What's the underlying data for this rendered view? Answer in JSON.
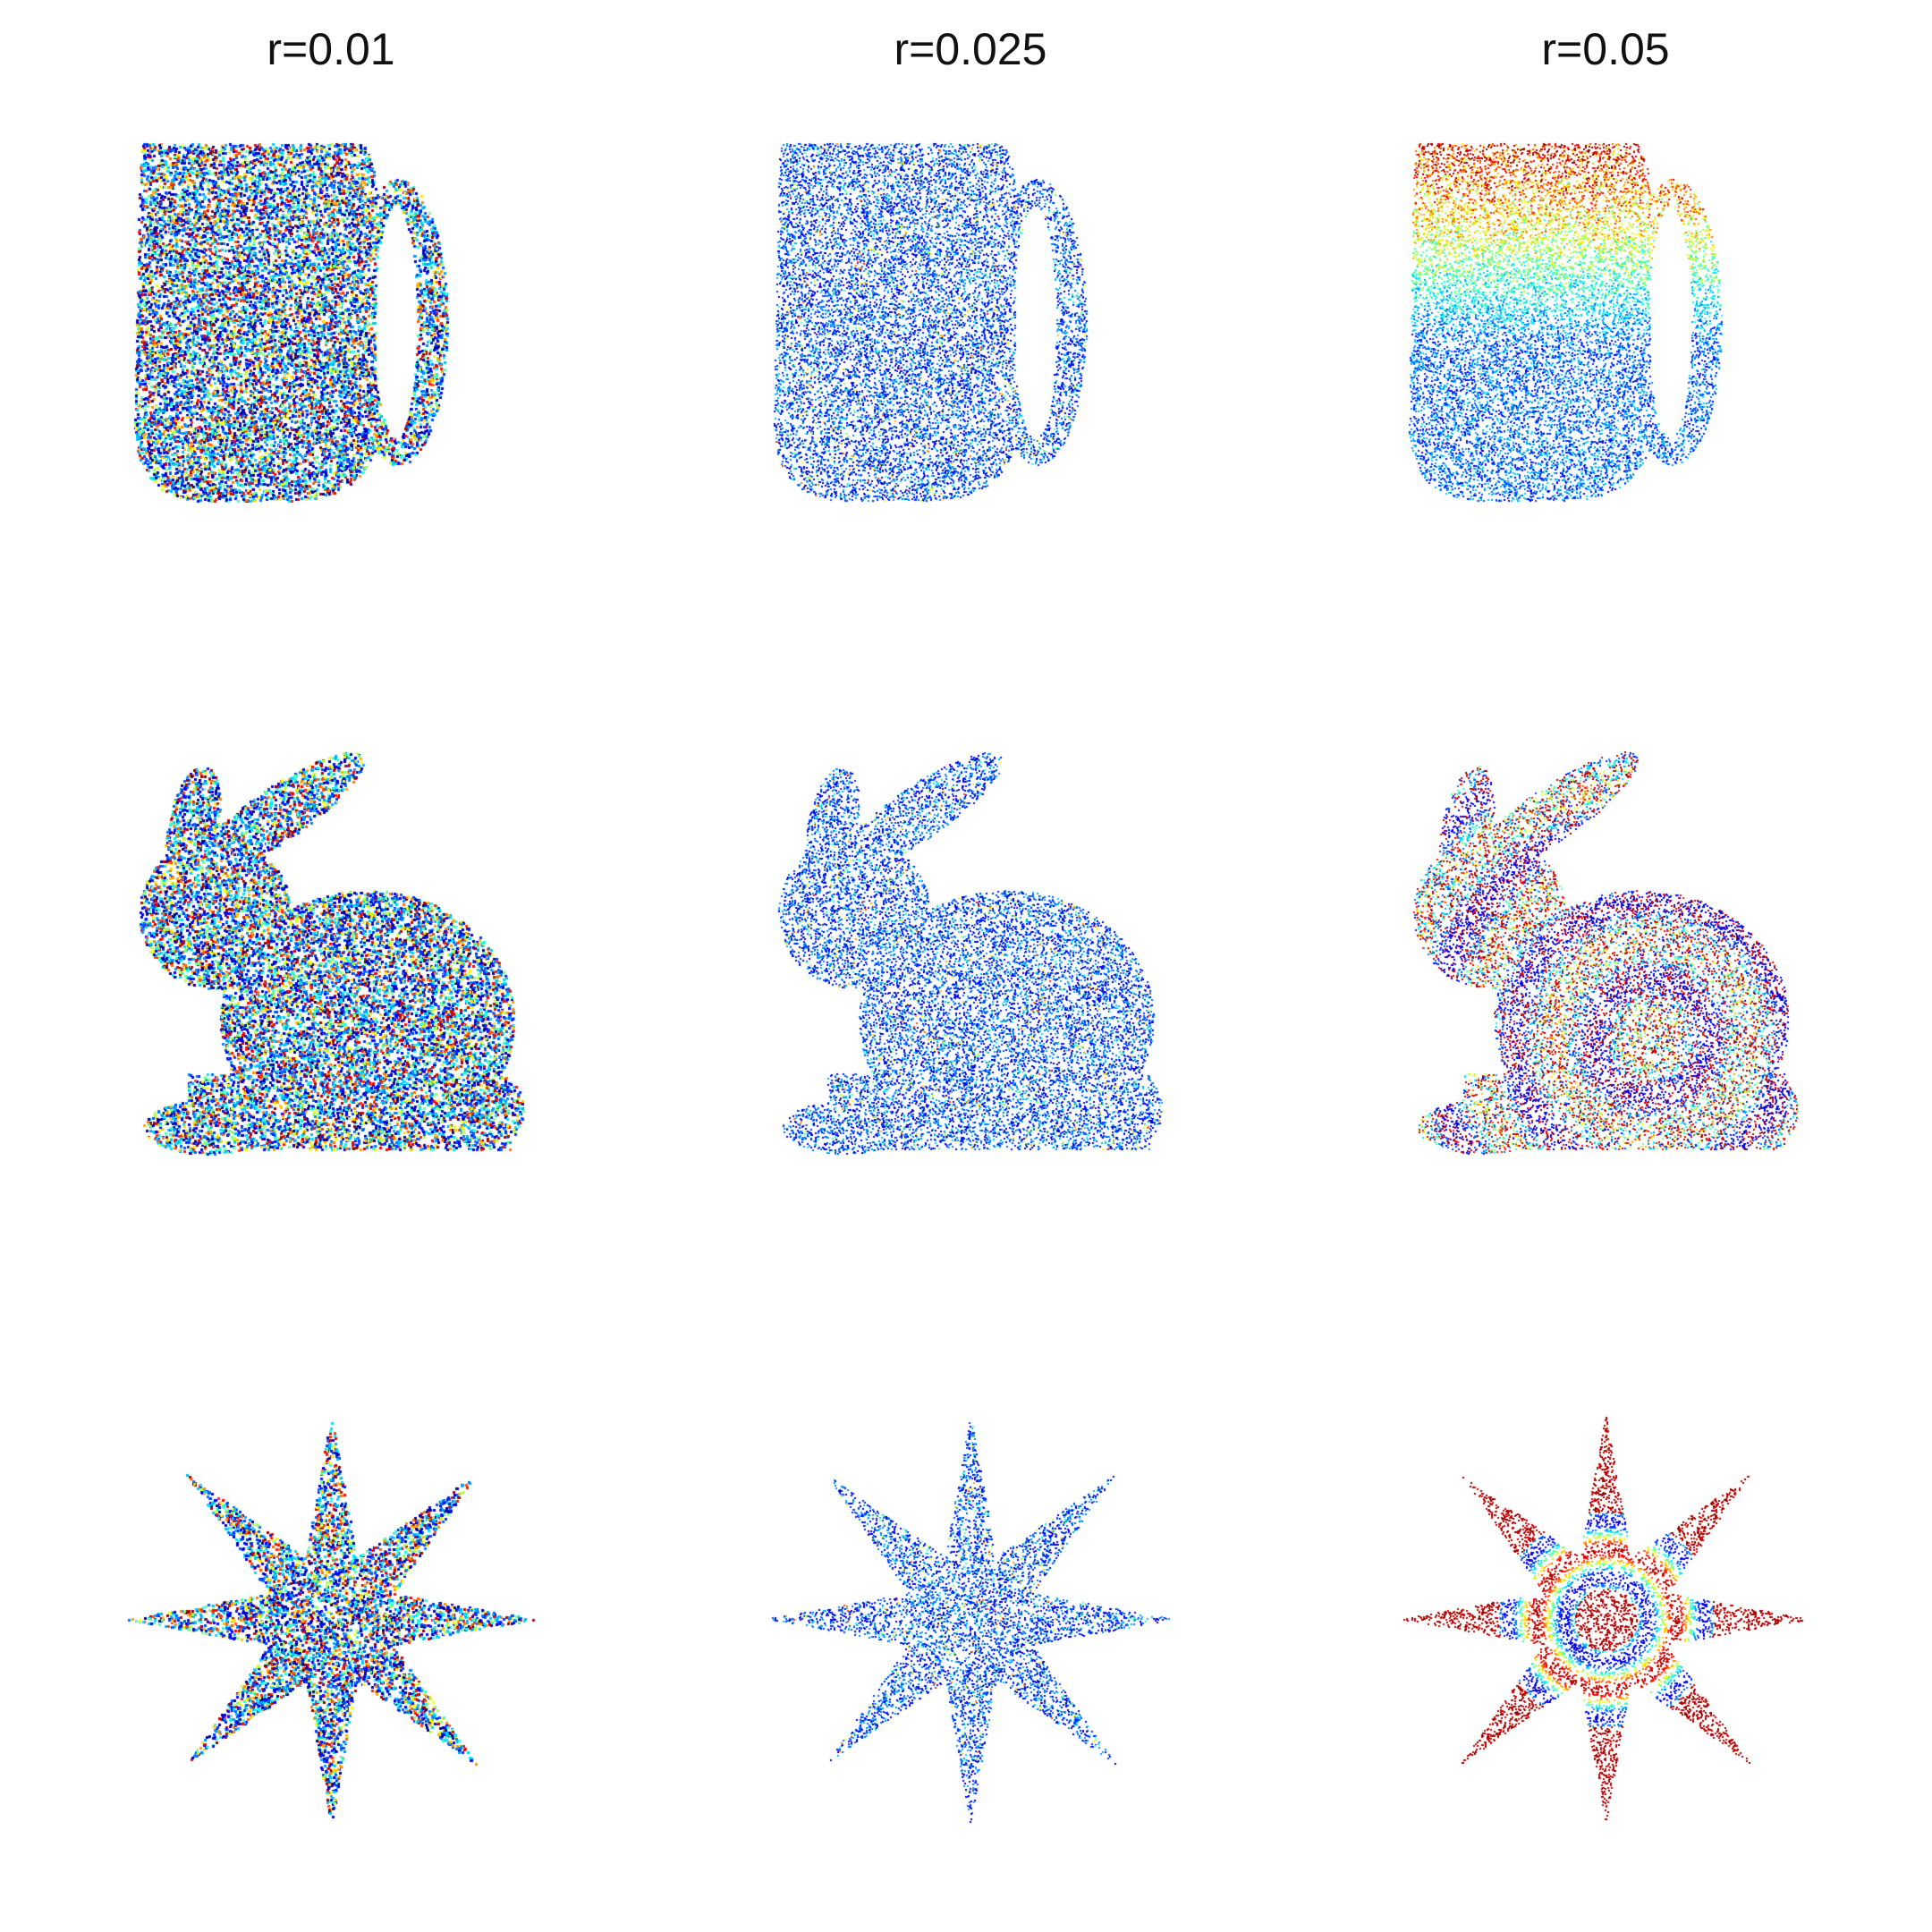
{
  "figure": {
    "columns": [
      {
        "title": "r=0.01",
        "noise": 0.85
      },
      {
        "title": "r=0.025",
        "noise": 0.25
      },
      {
        "title": "r=0.05",
        "noise": 0.55
      }
    ],
    "rows": [
      {
        "shape": "mug"
      },
      {
        "shape": "bunny"
      },
      {
        "shape": "star"
      }
    ],
    "colormap": "jet",
    "colors": {
      "background": "#ffffff",
      "low": "#00008f",
      "mid": "#10c8e0",
      "high": "#800000"
    }
  }
}
